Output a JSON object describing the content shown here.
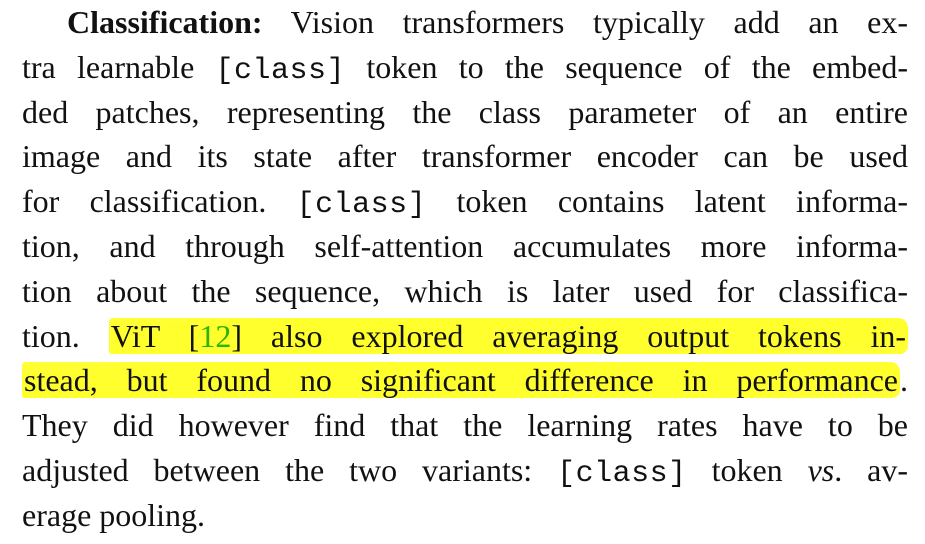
{
  "paragraph": {
    "l1": {
      "bold": "Classification:",
      "text": " Vision transformers typically add an ex-"
    },
    "l2": {
      "pre": "tra learnable ",
      "mono": "[class]",
      "post": " token to the sequence of the embed-"
    },
    "l3": {
      "text": "ded patches, representing the class parameter of an entire"
    },
    "l4": {
      "text": "image and its state after transformer encoder can be used"
    },
    "l5": {
      "pre": "for classification. ",
      "mono": "[class]",
      "post": " token contains latent informa-"
    },
    "l6": {
      "text": "tion, and through self-attention accumulates more informa-"
    },
    "l7": {
      "text": "tion about the sequence, which is later used for classifica-"
    },
    "l8": {
      "pre": "tion. ",
      "hl_a": "ViT [",
      "cite": "12",
      "hl_b": "] also explored averaging output tokens in-"
    },
    "l9": {
      "hl": "stead, but found no significant difference in performance",
      "post": "."
    },
    "l10": {
      "text": "They did however find that the learning rates have to be"
    },
    "l11": {
      "pre": "adjusted between the two variants: ",
      "mono": "[class]",
      "mid": " token ",
      "ital": "vs",
      "post": ". av-"
    },
    "l12": {
      "text": "erage pooling."
    }
  },
  "colors": {
    "highlight": "#ffff33",
    "citation": "#2db300",
    "text": "#111111"
  }
}
